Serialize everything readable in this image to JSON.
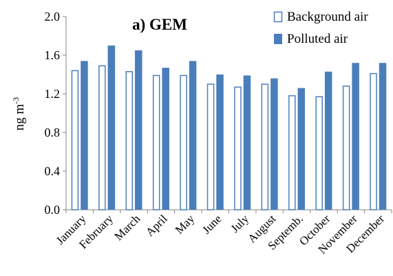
{
  "chart_data": {
    "type": "bar",
    "title": "a) GEM",
    "ylabel": "ng m",
    "ylabel_superscript": "-3",
    "ylim": [
      0,
      2.0
    ],
    "yticks": [
      "0.0",
      "0.4",
      "0.8",
      "1.2",
      "1.6",
      "2.0"
    ],
    "ytick_values": [
      0,
      0.4,
      0.8,
      1.2,
      1.6,
      2.0
    ],
    "grid": false,
    "legend_position": "top-right",
    "categories": [
      "January",
      "February",
      "March",
      "April",
      "May",
      "June",
      "July",
      "August",
      "Septemb.",
      "October",
      "November",
      "December"
    ],
    "series": [
      {
        "name": "Background air",
        "style": "hollow",
        "color": "#4a7ebb",
        "values": [
          1.44,
          1.49,
          1.43,
          1.39,
          1.39,
          1.3,
          1.27,
          1.3,
          1.18,
          1.17,
          1.28,
          1.41
        ]
      },
      {
        "name": "Polluted air",
        "style": "filled",
        "color": "#4a7ebb",
        "values": [
          1.54,
          1.7,
          1.65,
          1.47,
          1.54,
          1.4,
          1.39,
          1.36,
          1.26,
          1.43,
          1.52,
          1.52
        ]
      }
    ]
  }
}
